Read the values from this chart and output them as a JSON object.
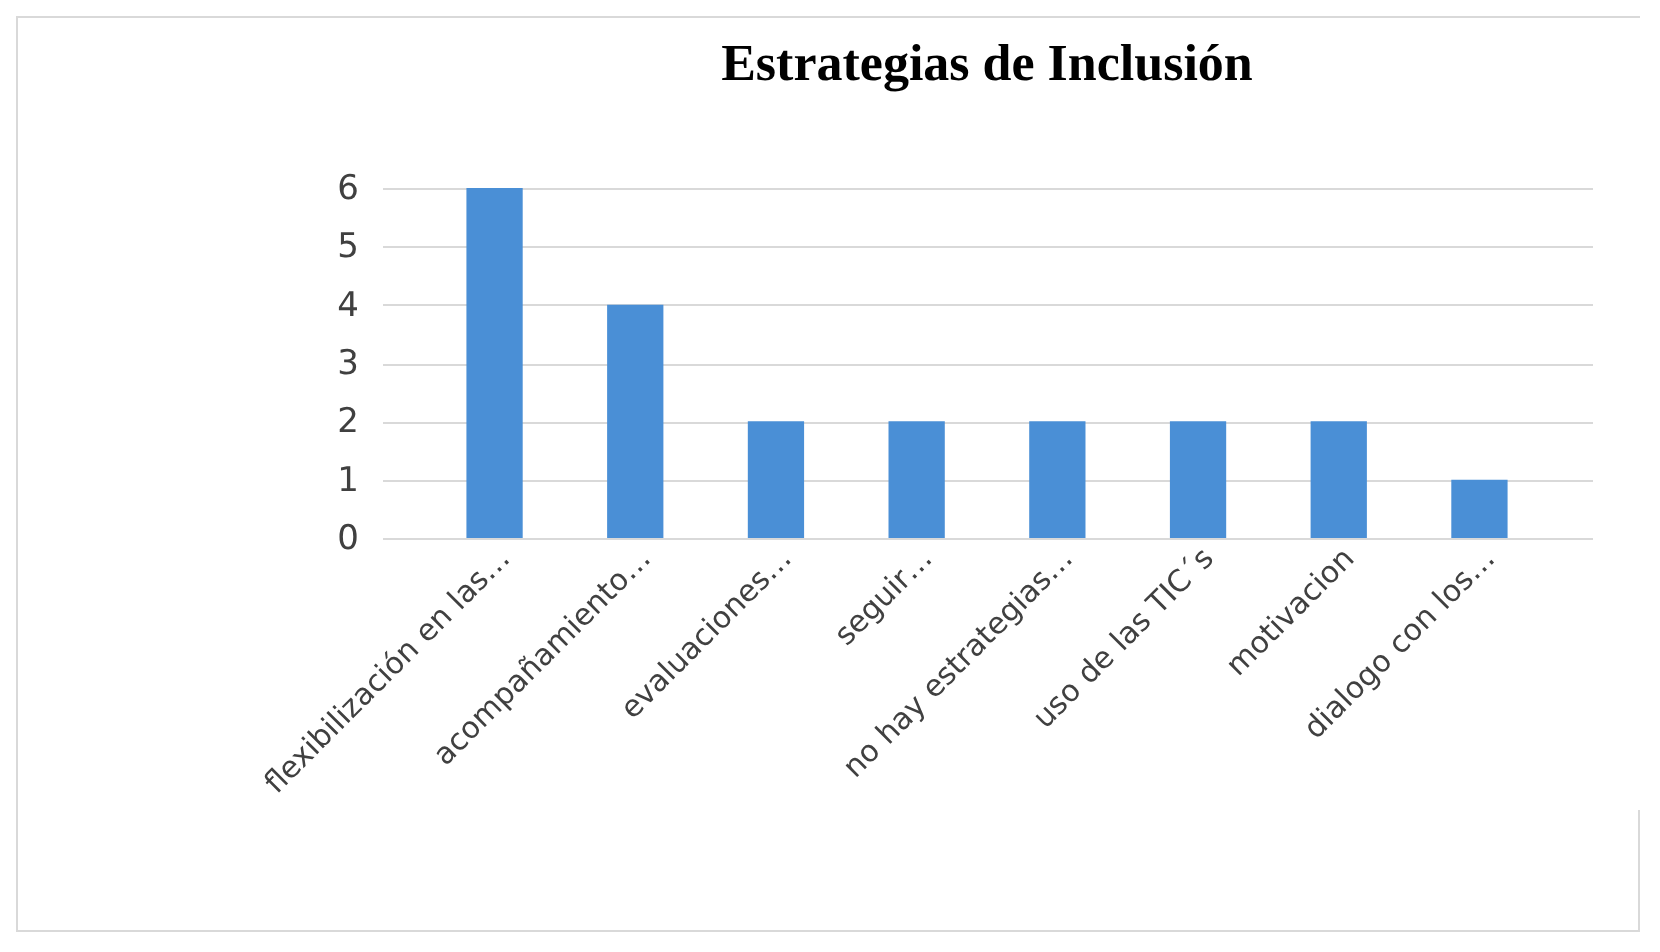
{
  "chart_data": {
    "type": "bar",
    "title": "Estrategias de Inclusión",
    "categories": [
      "flexibilización en las…",
      "acompañamiento…",
      "evaluaciones…",
      "seguir…",
      "no hay estrategias…",
      "uso de las TIC´s",
      "motivacion",
      "dialogo con los…"
    ],
    "values": [
      6,
      4,
      2,
      2,
      2,
      2,
      2,
      1
    ],
    "color": "#4a8fd6",
    "ylim": [
      0,
      6
    ],
    "yticks": [
      0,
      1,
      2,
      3,
      4,
      5,
      6
    ],
    "grid": "y"
  }
}
